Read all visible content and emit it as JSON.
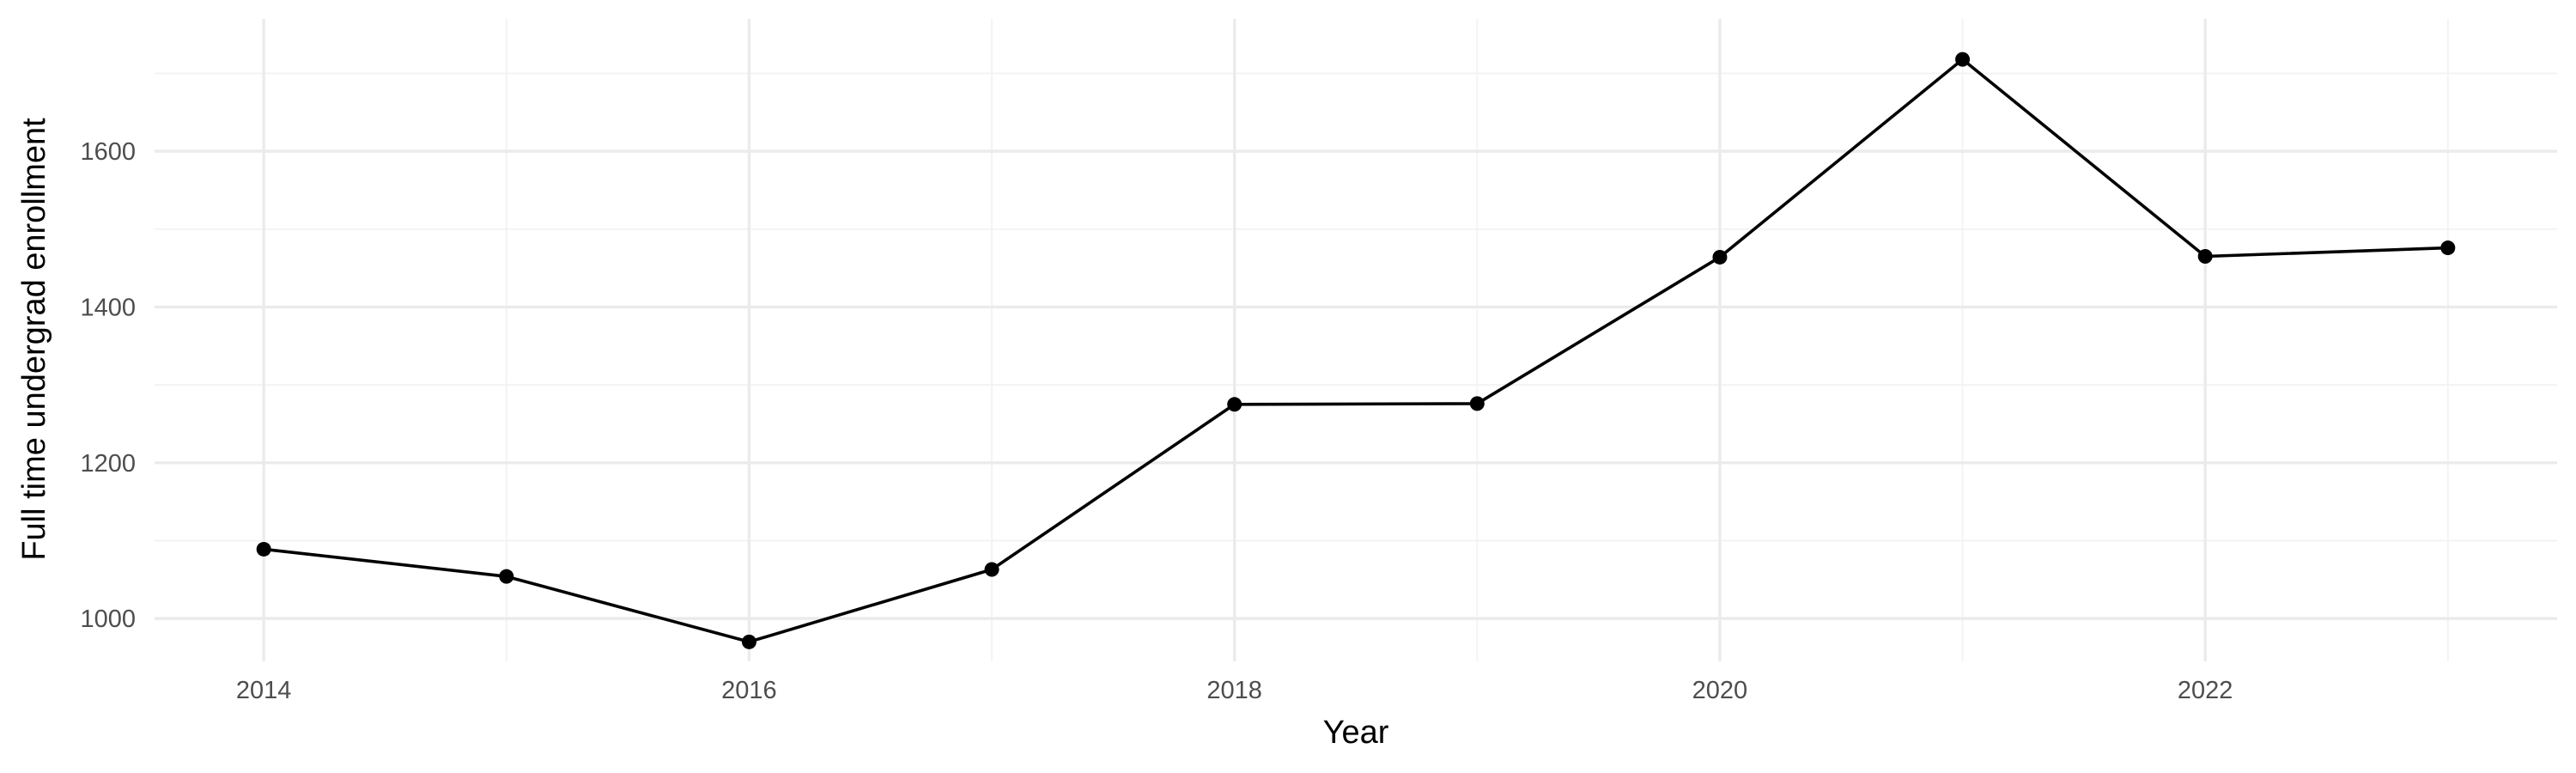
{
  "chart_data": {
    "type": "line",
    "title": "",
    "xlabel": "Year",
    "ylabel": "Full time undergrad enrollment",
    "x": [
      2014,
      2015,
      2016,
      2017,
      2018,
      2019,
      2020,
      2021,
      2022,
      2023
    ],
    "series": [
      {
        "values": [
          1089,
          1054,
          970,
          1063,
          1275,
          1276,
          1464,
          1718,
          1465,
          1476
        ]
      }
    ],
    "xlim": [
      2013.55,
      2023.45
    ],
    "ylim": [
      945,
      1770
    ],
    "x_ticks": [
      2014,
      2016,
      2018,
      2020,
      2022
    ],
    "x_tick_labels": [
      "2014",
      "2016",
      "2018",
      "2020",
      "2022"
    ],
    "y_ticks": [
      1000,
      1200,
      1400,
      1600
    ],
    "y_tick_labels": [
      "1000",
      "1200",
      "1400",
      "1600"
    ],
    "grid": true,
    "legend": "none",
    "line_color": "#000000",
    "grid_color": "#ebebeb"
  }
}
